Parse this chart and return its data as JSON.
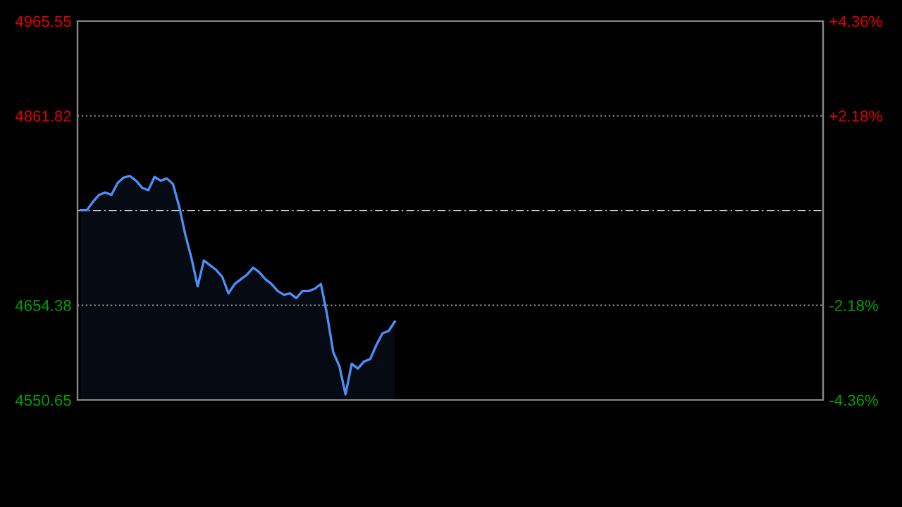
{
  "chart_data": {
    "type": "area",
    "categories": [
      null,
      null,
      null,
      null,
      null,
      null,
      null,
      null,
      null,
      null,
      null,
      null,
      null,
      null,
      null,
      null,
      null,
      null,
      null,
      null,
      null,
      null,
      null,
      null,
      null,
      null,
      null,
      null,
      null,
      null,
      null,
      null,
      null,
      null,
      null,
      null,
      null,
      null,
      null,
      null,
      null,
      null,
      null,
      null,
      null,
      null,
      null,
      null,
      null,
      null,
      null,
      null,
      null,
      null,
      null,
      null,
      null,
      null,
      null,
      null,
      null,
      null,
      null,
      null,
      null,
      null,
      null,
      null,
      null,
      null,
      null,
      null,
      null,
      null,
      null,
      null,
      null,
      null,
      null,
      null,
      null,
      null,
      null,
      null,
      null,
      null,
      null,
      null,
      null,
      null,
      null,
      null,
      null,
      null,
      null,
      null,
      null,
      null,
      null,
      null,
      null,
      null,
      null,
      null,
      null,
      null,
      null,
      null,
      null,
      null,
      null,
      null,
      null,
      null,
      null,
      null,
      null,
      null,
      null,
      null,
      null
    ],
    "series": [
      {
        "color": "#4f8ef7",
        "values": [
          4758.4,
          4758.4,
          4767.6,
          4775.3,
          4777.9,
          4775.3,
          4788.2,
          4794.3,
          4795.9,
          4790.8,
          4783.0,
          4780.5,
          4794.9,
          4790.8,
          4793.3,
          4787.1,
          4762.5,
          4731.6,
          4705.9,
          4675.1,
          4703.4,
          4698.2,
          4693.1,
          4685.4,
          4667.4,
          4677.6,
          4682.8,
          4687.9,
          4695.6,
          4690.5,
          4682.8,
          4677.6,
          4669.9,
          4665.8,
          4667.4,
          4662.2,
          4669.9,
          4669.9,
          4672.5,
          4677.6,
          4644.2,
          4603.1,
          4587.7,
          4556.8,
          4590.3,
          4585.1,
          4592.8,
          4595.4,
          4610.8,
          4623.7,
          4626.2,
          4636.5,
          null,
          null,
          null,
          null,
          null,
          null,
          null,
          null,
          null,
          null,
          null,
          null,
          null,
          null,
          null,
          null,
          null,
          null,
          null,
          null,
          null,
          null,
          null,
          null,
          null,
          null,
          null,
          null,
          null,
          null,
          null,
          null,
          null,
          null,
          null,
          null,
          null,
          null,
          null,
          null,
          null,
          null,
          null,
          null,
          null,
          null,
          null,
          null,
          null,
          null,
          null,
          null,
          null,
          null,
          null,
          null,
          null,
          null,
          null,
          null,
          null,
          null,
          null,
          null,
          null,
          null,
          null,
          null,
          null
        ]
      }
    ],
    "ylim": [
      4550.65,
      4965.55
    ],
    "yticks": [
      {
        "value": 4550.65,
        "label": "4550.65"
      },
      {
        "value": 4654.38,
        "label": "4654.38"
      },
      {
        "value": 4861.82,
        "label": "4861.82"
      },
      {
        "value": 4965.55,
        "label": "4965.55"
      }
    ],
    "y2lim": [
      -4.36,
      4.36
    ],
    "y2ticks": [
      {
        "value": -4.36,
        "label": "-4.36%"
      },
      {
        "value": -2.18,
        "label": "-2.18%"
      },
      {
        "value": 2.18,
        "label": "+2.18%"
      },
      {
        "value": 4.36,
        "label": "+4.36%"
      }
    ],
    "ref_lines": [
      {
        "axis": "y",
        "value": 4758.1,
        "color": "#c8c8c8",
        "line_style": "dashed"
      }
    ],
    "grid": "y",
    "legend": false
  }
}
